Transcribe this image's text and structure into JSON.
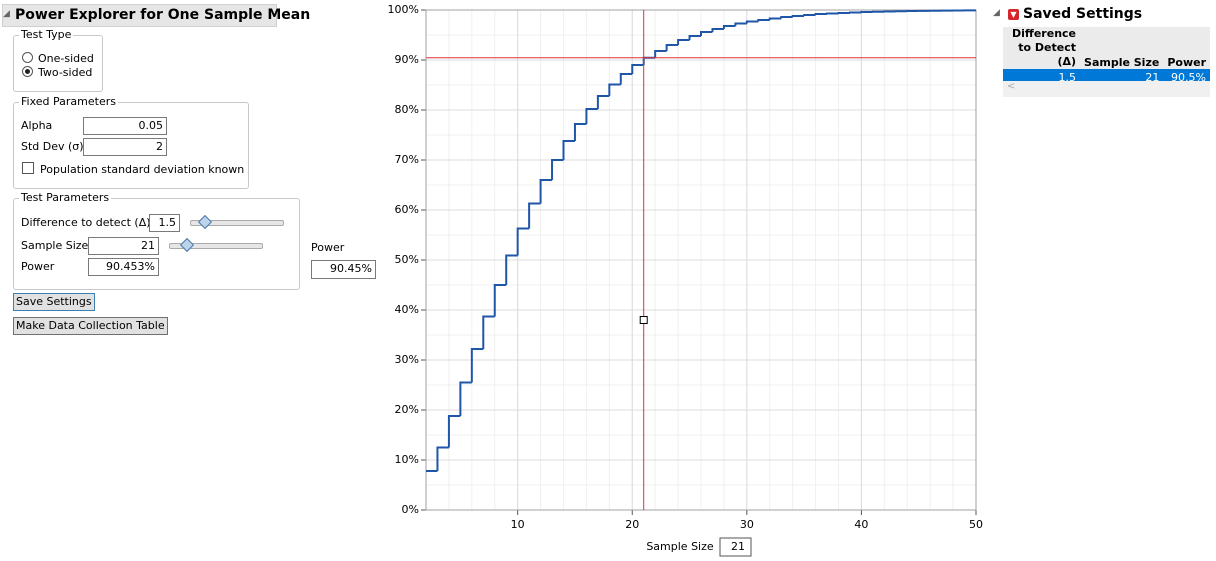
{
  "panel": {
    "title": "Power Explorer for One Sample Mean",
    "test_type": {
      "label": "Test Type",
      "options": [
        "One-sided",
        "Two-sided"
      ]
    },
    "fixed": {
      "label": "Fixed Parameters",
      "alpha_label": "Alpha",
      "alpha": "0.05",
      "sd_label": "Std Dev (σ)",
      "sd": "2",
      "known_label": "Population standard deviation known"
    },
    "test": {
      "label": "Test Parameters",
      "diff_label": "Difference to detect (Δ)",
      "diff": "1.5",
      "n_label": "Sample Size",
      "n": "21",
      "power_label": "Power",
      "power": "90.453%"
    },
    "power_box": {
      "label": "Power",
      "value": "90.45%"
    },
    "buttons": [
      "Save Settings",
      "Make Data Collection Table"
    ]
  },
  "chart_data": {
    "type": "step",
    "x": [
      2,
      3,
      4,
      5,
      6,
      7,
      8,
      9,
      10,
      11,
      12,
      13,
      14,
      15,
      16,
      17,
      18,
      19,
      20,
      21,
      22,
      23,
      24,
      25,
      26,
      27,
      28,
      29,
      30,
      31,
      32,
      33,
      34,
      35,
      36,
      37,
      38,
      39,
      40,
      41,
      42,
      43,
      44,
      45,
      46,
      47,
      48,
      49,
      50
    ],
    "values": [
      7.8,
      12.5,
      18.8,
      25.5,
      32.2,
      38.7,
      45,
      50.9,
      56.3,
      61.3,
      66,
      70,
      73.8,
      77.2,
      80.2,
      82.8,
      85.1,
      87.2,
      89,
      90.45,
      91.8,
      93,
      94,
      94.8,
      95.6,
      96.2,
      96.8,
      97.3,
      97.7,
      98,
      98.3,
      98.6,
      98.8,
      99,
      99.2,
      99.3,
      99.4,
      99.5,
      99.6,
      99.65,
      99.7,
      99.75,
      99.8,
      99.83,
      99.86,
      99.88,
      99.9,
      99.92,
      99.93
    ],
    "xlim": [
      2,
      50
    ],
    "ylim": [
      0,
      100
    ],
    "xticks": [
      10,
      20,
      30,
      40,
      50
    ],
    "yticks": [
      {
        "value": 0,
        "label": "0%"
      },
      {
        "value": 10,
        "label": "10%"
      },
      {
        "value": 20,
        "label": "20%"
      },
      {
        "value": 30,
        "label": "30%"
      },
      {
        "value": 40,
        "label": "40%"
      },
      {
        "value": 50,
        "label": "50%"
      },
      {
        "value": 60,
        "label": "60%"
      },
      {
        "value": 70,
        "label": "70%"
      },
      {
        "value": 80,
        "label": "80%"
      },
      {
        "value": 90,
        "label": "90%"
      },
      {
        "value": 100,
        "label": "100%"
      }
    ],
    "x_label": "Sample Size",
    "x_box": "21",
    "color": "#1f56a8",
    "grid": true,
    "crosshair": {
      "x": 21,
      "y": 90.453,
      "color": "#e0303a"
    }
  },
  "saved": {
    "title": "Saved Settings",
    "columns": [
      "Difference to Detect (Δ)",
      "Sample Size",
      "Power"
    ],
    "rows": [
      [
        "1.5",
        "21",
        "90.5%"
      ]
    ]
  }
}
